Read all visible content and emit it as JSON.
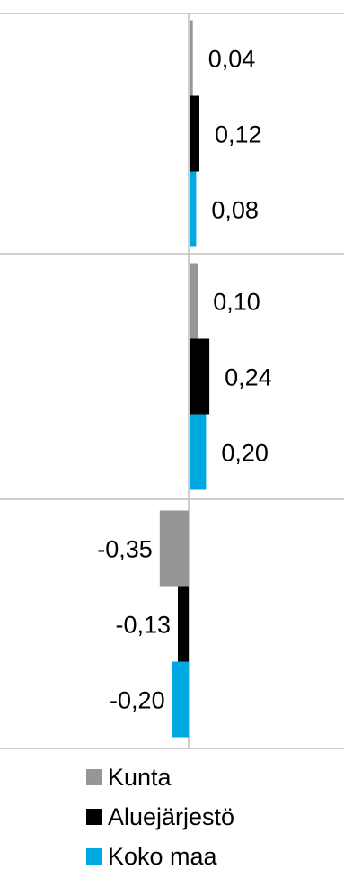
{
  "chart_data": {
    "type": "bar",
    "orientation": "horizontal",
    "groups": 3,
    "series": [
      {
        "name": "Kunta",
        "color": "#969696",
        "values": [
          0.04,
          0.1,
          -0.35
        ],
        "labels": [
          "0,04",
          "0,10",
          "-0,35"
        ]
      },
      {
        "name": "Aluejärjestö",
        "color": "#000000",
        "values": [
          0.12,
          0.24,
          -0.13
        ],
        "labels": [
          "0,12",
          "0,24",
          "-0,13"
        ]
      },
      {
        "name": "Koko maa",
        "color": "#00a8e1",
        "values": [
          0.08,
          0.2,
          -0.2
        ],
        "labels": [
          "0,08",
          "0,20",
          "-0,20"
        ]
      }
    ],
    "grid": true,
    "legend_position": "bottom"
  }
}
